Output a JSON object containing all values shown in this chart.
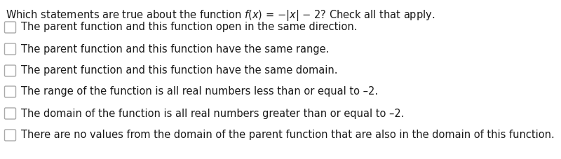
{
  "title": "Which statements are true about the function  f(x) = −|x| − 2? Check all that apply.",
  "options": [
    "The parent function and this function open in the same direction.",
    "The parent function and this function have the same range.",
    "The parent function and this function have the same domain.",
    "The range of the function is all real numbers less than or equal to –2.",
    "The domain of the function is all real numbers greater than or equal to –2.",
    "There are no values from the domain of the parent function that are also in the domain of this function."
  ],
  "bg_color": "#ffffff",
  "text_color": "#1a1a1a",
  "font_size": 10.5,
  "title_font_size": 10.5,
  "checkbox_color": "#aaaaaa",
  "checkbox_face": "#ffffff"
}
